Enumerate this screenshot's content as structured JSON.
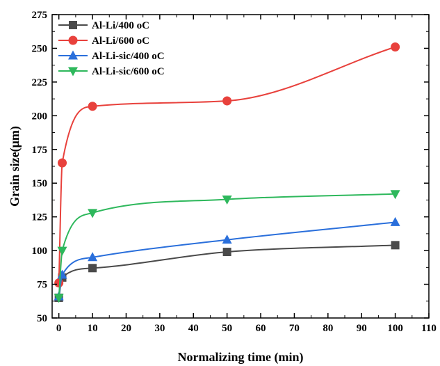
{
  "chart_data": {
    "type": "line",
    "title": "",
    "xlabel": "Normalizing time (min)",
    "ylabel": "Grain size(μm)",
    "xlim": [
      -2,
      110
    ],
    "ylim": [
      50,
      275
    ],
    "xticks": [
      "0",
      "10",
      "20",
      "30",
      "40",
      "50",
      "60",
      "70",
      "80",
      "90",
      "100",
      "110"
    ],
    "yticks": [
      "50",
      "75",
      "100",
      "125",
      "150",
      "175",
      "200",
      "225",
      "250",
      "275"
    ],
    "legend_position": "top-left",
    "grid": false,
    "series": [
      {
        "name": "Al-Li/400 oC",
        "marker": "square",
        "color": "#4a4a4a",
        "x": [
          0,
          1,
          10,
          50,
          100
        ],
        "y": [
          65,
          80,
          87,
          99,
          104
        ]
      },
      {
        "name": "Al-Li/600 oC",
        "marker": "circle",
        "color": "#e8413c",
        "x": [
          0,
          1,
          10,
          50,
          100
        ],
        "y": [
          76,
          165,
          207,
          211,
          251
        ]
      },
      {
        "name": "Al-Li-sic/400 oC",
        "marker": "triangle-up",
        "color": "#2a6fdb",
        "x": [
          0,
          1,
          10,
          50,
          100
        ],
        "y": [
          66,
          82,
          95,
          108,
          121
        ]
      },
      {
        "name": "Al-Li-sic/600 oC",
        "marker": "triangle-down",
        "color": "#2eb85c",
        "x": [
          0,
          1,
          10,
          50,
          100
        ],
        "y": [
          65,
          100,
          128,
          138,
          142
        ]
      }
    ]
  }
}
